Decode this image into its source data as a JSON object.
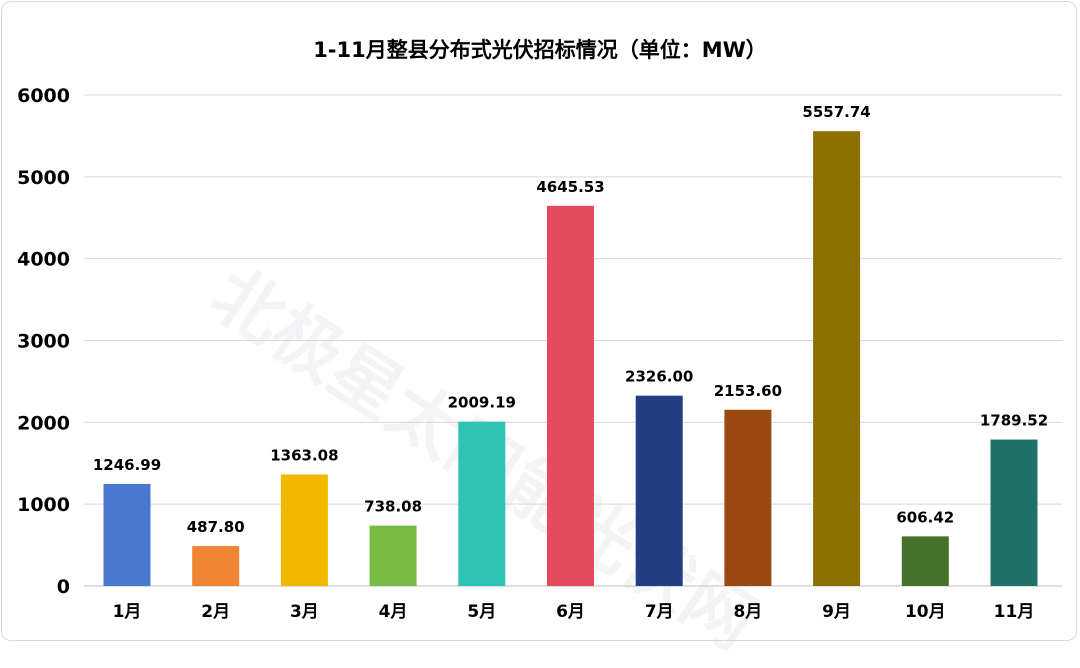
{
  "chart_data": {
    "type": "bar",
    "title": "1-11月整县分布式光伏招标情况（单位：MW）",
    "xlabel": "",
    "ylabel": "",
    "categories": [
      "1月",
      "2月",
      "3月",
      "4月",
      "5月",
      "6月",
      "7月",
      "8月",
      "9月",
      "10月",
      "11月"
    ],
    "values": [
      1246.99,
      487.8,
      1363.08,
      738.08,
      2009.19,
      4645.53,
      2326.0,
      2153.6,
      5557.74,
      606.42,
      1789.52
    ],
    "data_labels": [
      "1246.99",
      "487.80",
      "1363.08",
      "738.08",
      "2009.19",
      "4645.53",
      "2326.00",
      "2153.60",
      "5557.74",
      "606.42",
      "1789.52"
    ],
    "colors": [
      "#4A78CF",
      "#EF8433",
      "#F2B800",
      "#77BD43",
      "#2FC3B5",
      "#E44B5F",
      "#243F81",
      "#9A4A10",
      "#8C7000",
      "#45722B",
      "#1F7268"
    ],
    "ylim": [
      0,
      6000
    ],
    "yticks": [
      "0",
      "1000",
      "2000",
      "3000",
      "4000",
      "5000",
      "6000"
    ],
    "grid": true,
    "legend": "none"
  },
  "watermark": "北极星太阳能光伏网"
}
